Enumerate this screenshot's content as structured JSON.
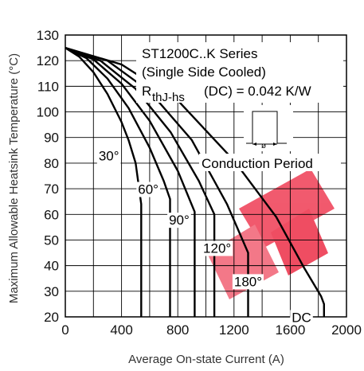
{
  "chart_data": {
    "type": "line",
    "xlabel": "Average On-state Current (A)",
    "ylabel": "Maximum Allowable Heatsink Temperature (°C)",
    "xlim": [
      0,
      2000
    ],
    "ylim": [
      20,
      130
    ],
    "xticks": [
      0,
      400,
      800,
      1200,
      1600,
      2000
    ],
    "yticks": [
      20,
      30,
      40,
      50,
      60,
      70,
      80,
      90,
      100,
      110,
      120,
      130
    ],
    "grid": true,
    "annotations": {
      "series_title": "ST1200C..K Series",
      "cooling": "(Single Side Cooled)",
      "rth_prefix": "R",
      "rth_sub": "thJ-hs",
      "rth_suffix": "(DC) = 0.042 K/W",
      "conduction_label": "Conduction Period",
      "symbol": "ø"
    },
    "series": [
      {
        "name": "30°",
        "label_pos": {
          "x": 310,
          "y": 61
        },
        "points": [
          [
            0,
            125
          ],
          [
            100,
            121.5
          ],
          [
            200,
            115.5
          ],
          [
            300,
            107
          ],
          [
            400,
            96
          ],
          [
            450,
            89
          ],
          [
            500,
            80
          ],
          [
            540,
            64
          ],
          [
            540,
            20
          ]
        ]
      },
      {
        "name": "60°",
        "label_pos": {
          "x": 590,
          "y": 48
        },
        "points": [
          [
            0,
            125
          ],
          [
            150,
            121
          ],
          [
            300,
            113
          ],
          [
            450,
            101.5
          ],
          [
            600,
            86
          ],
          [
            700,
            73
          ],
          [
            745,
            66
          ],
          [
            745,
            20
          ]
        ]
      },
      {
        "name": "90°",
        "label_pos": {
          "x": 810,
          "y": 36
        },
        "points": [
          [
            0,
            125
          ],
          [
            200,
            120.5
          ],
          [
            400,
            111
          ],
          [
            600,
            96.5
          ],
          [
            800,
            77
          ],
          [
            920,
            61
          ],
          [
            920,
            20
          ]
        ]
      },
      {
        "name": "120°",
        "label_pos": {
          "x": 1080,
          "y": 25
        },
        "points": [
          [
            0,
            125
          ],
          [
            250,
            120
          ],
          [
            500,
            109
          ],
          [
            750,
            92
          ],
          [
            950,
            73
          ],
          [
            1060,
            60
          ],
          [
            1060,
            51
          ],
          [
            1060,
            20
          ]
        ]
      },
      {
        "name": "180°",
        "label_pos": {
          "x": 1300,
          "y": 12
        },
        "points": [
          [
            0,
            125
          ],
          [
            300,
            120
          ],
          [
            600,
            108
          ],
          [
            900,
            89
          ],
          [
            1150,
            64
          ],
          [
            1300,
            45
          ],
          [
            1300,
            41
          ],
          [
            1300,
            20
          ]
        ]
      },
      {
        "name": "DC",
        "label_pos": {
          "x": 1680,
          "y": -2
        },
        "points": [
          [
            0,
            125
          ],
          [
            400,
            118.5
          ],
          [
            800,
            104.5
          ],
          [
            1200,
            81
          ],
          [
            1500,
            59
          ],
          [
            1700,
            39
          ],
          [
            1820,
            28
          ],
          [
            1840,
            25
          ],
          [
            1840,
            20
          ]
        ]
      }
    ]
  },
  "accent": "#e8002a"
}
